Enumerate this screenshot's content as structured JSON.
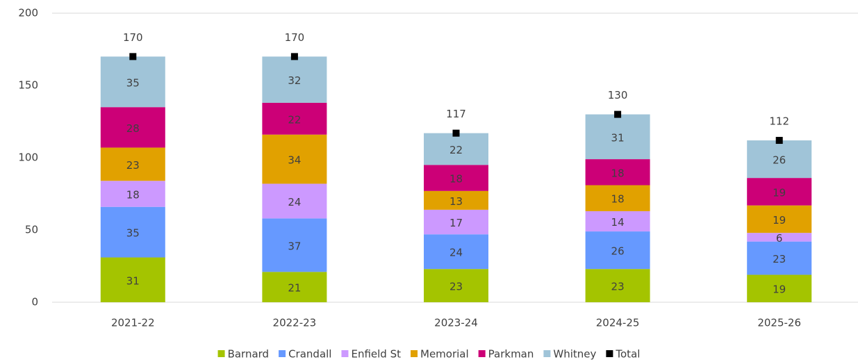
{
  "chart_data": {
    "type": "stacked_bar",
    "categories": [
      "2021-22",
      "2022-23",
      "2023-24",
      "2024-25",
      "2025-26"
    ],
    "series": [
      {
        "name": "Barnard",
        "color": "#a4c400",
        "values": [
          31,
          21,
          23,
          23,
          19
        ]
      },
      {
        "name": "Crandall",
        "color": "#6699ff",
        "values": [
          35,
          37,
          24,
          26,
          23
        ]
      },
      {
        "name": "Enfield St",
        "color": "#cc99ff",
        "values": [
          18,
          24,
          17,
          14,
          6
        ]
      },
      {
        "name": "Memorial",
        "color": "#e1a100",
        "values": [
          23,
          34,
          13,
          18,
          19
        ]
      },
      {
        "name": "Parkman",
        "color": "#cc0077",
        "values": [
          28,
          22,
          18,
          18,
          19
        ]
      },
      {
        "name": "Whitney",
        "color": "#a0c4d8",
        "values": [
          35,
          32,
          22,
          31,
          26
        ]
      }
    ],
    "total": {
      "name": "Total",
      "color": "#000000",
      "values": [
        170,
        170,
        117,
        130,
        112
      ]
    },
    "ylim": [
      0,
      200
    ],
    "yticks": [
      0,
      50,
      100,
      150,
      200
    ],
    "grid": false,
    "legend": "bottom"
  }
}
